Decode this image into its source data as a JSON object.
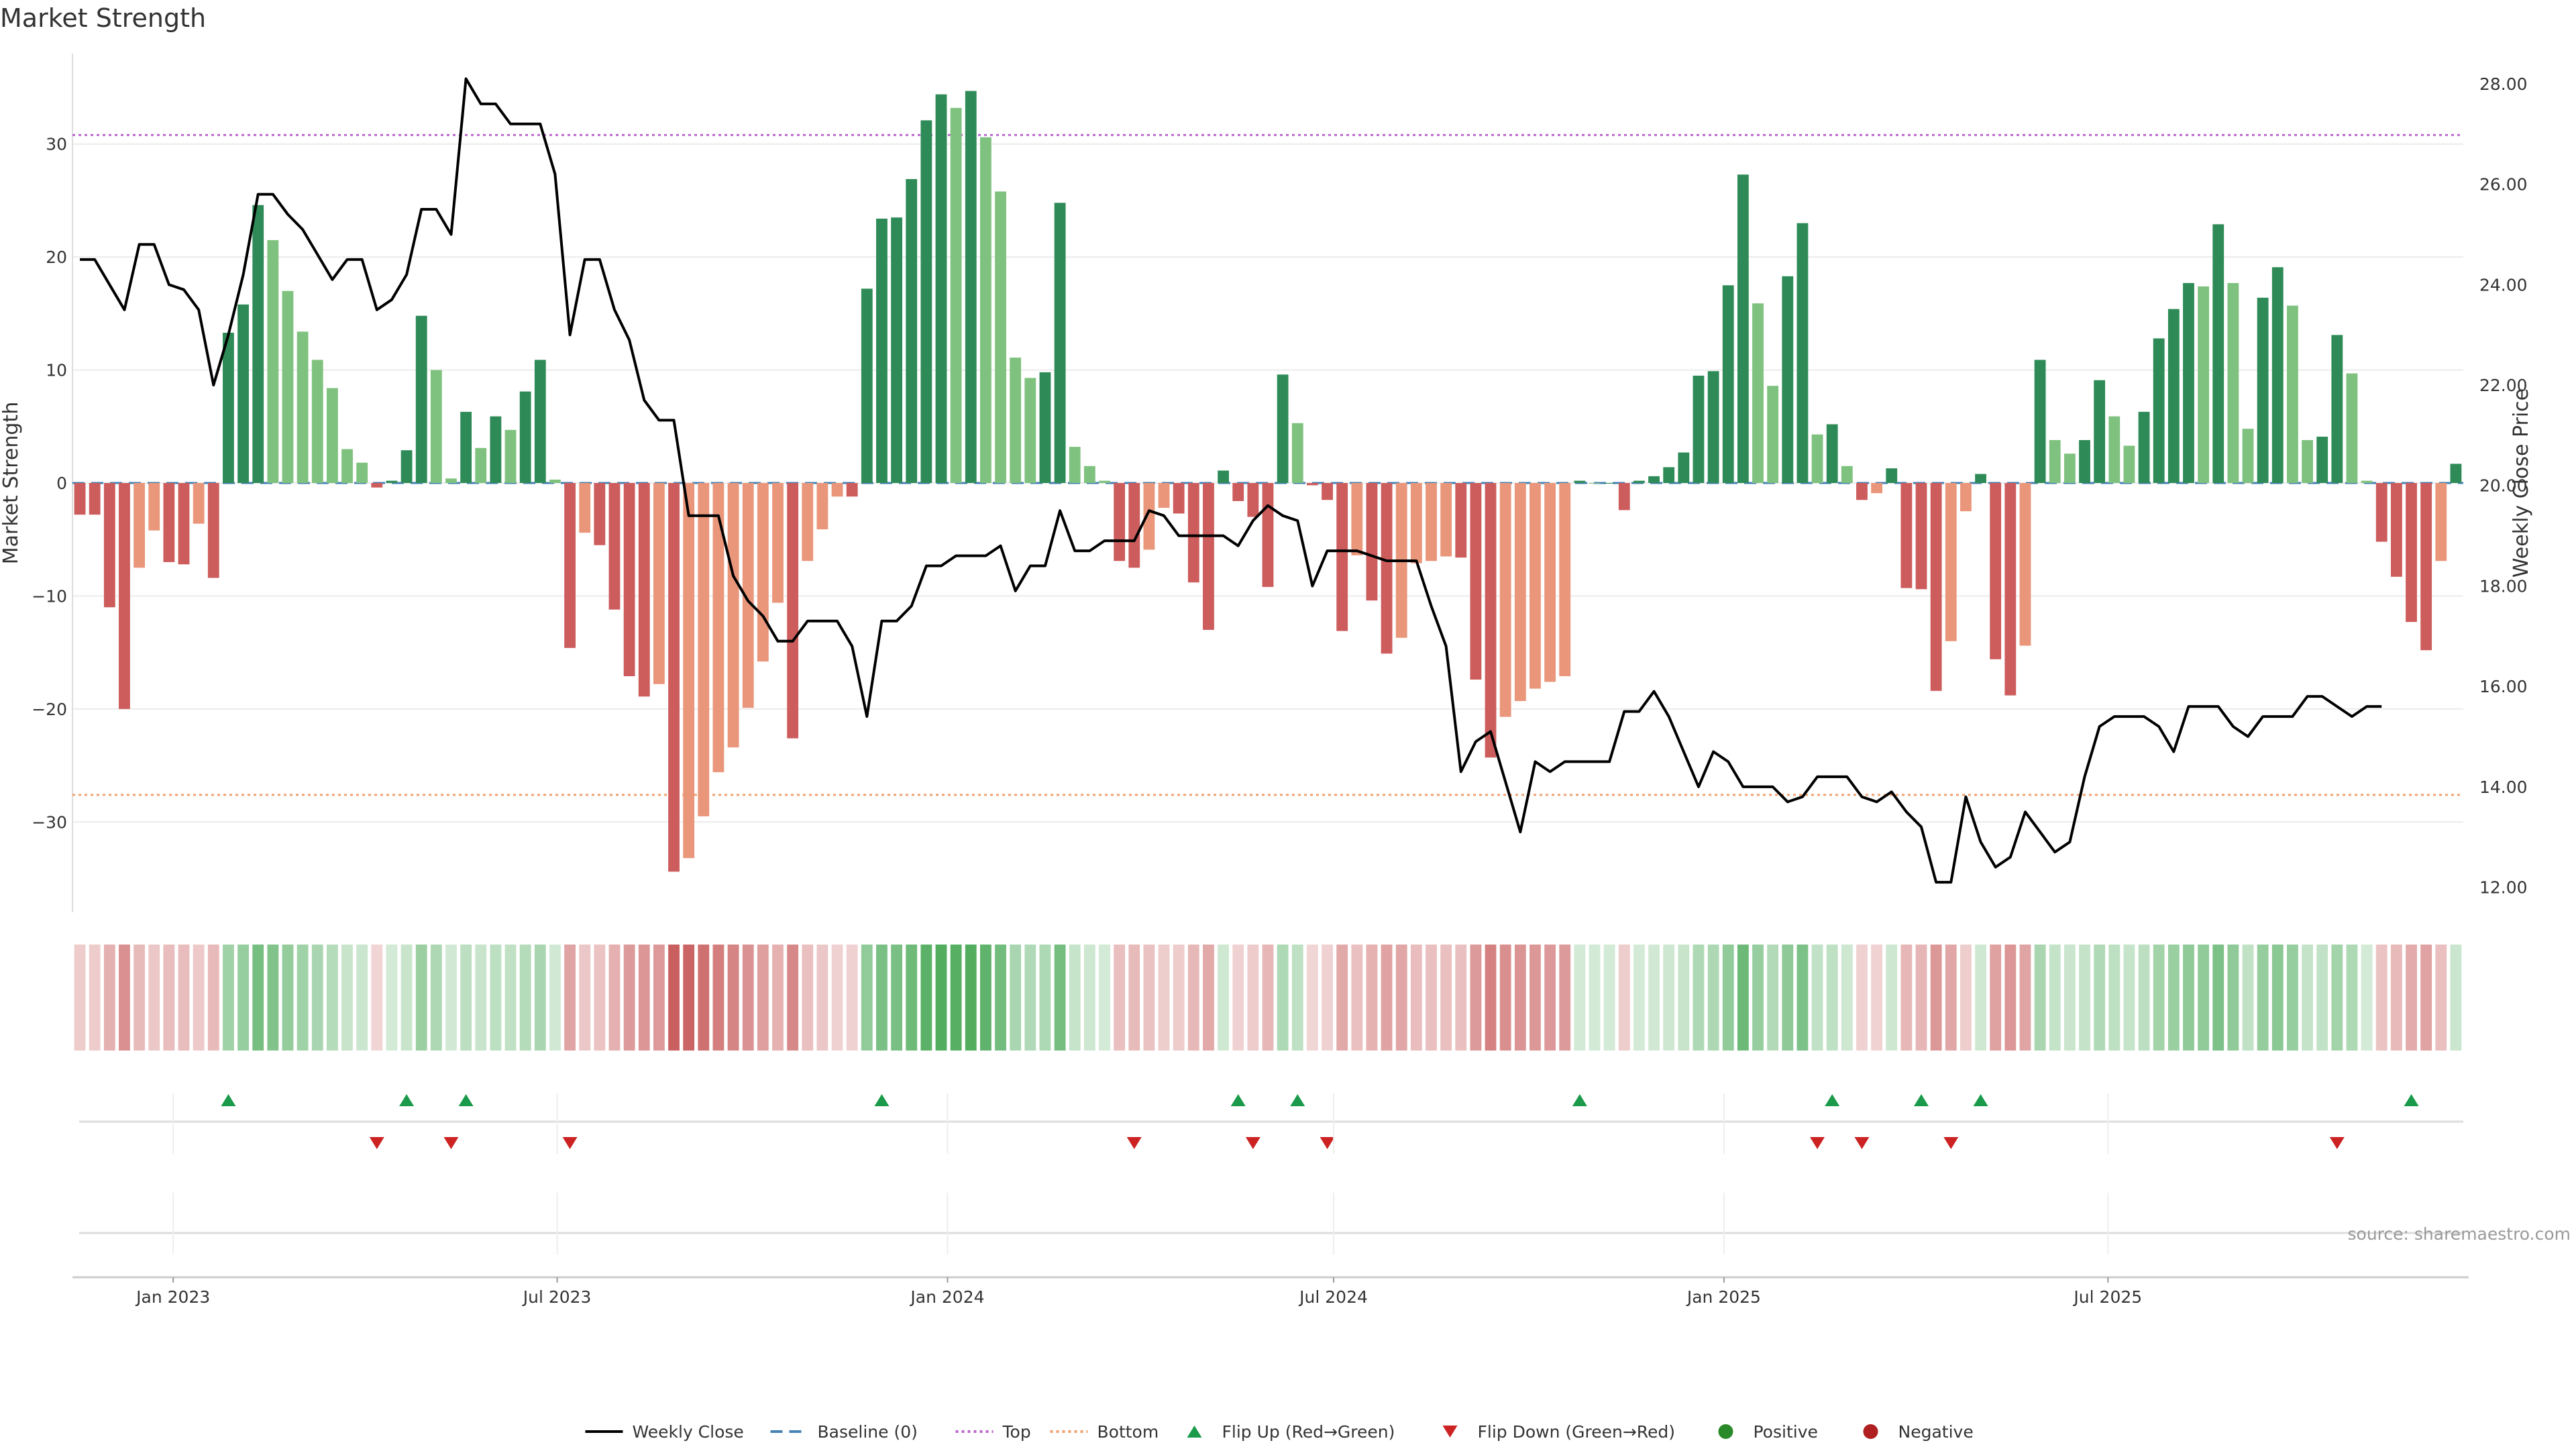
{
  "chart_data": {
    "type": "bar",
    "title": "Market Strength",
    "ylabel": "Market Strength",
    "y2label": "Weekly Close Price",
    "ylim": [
      -38,
      38
    ],
    "y2lim": [
      11.5,
      28.6
    ],
    "yticks": [
      -30,
      -20,
      -10,
      0,
      10,
      20,
      30
    ],
    "y2ticks": [
      "12.00",
      "14.00",
      "16.00",
      "18.00",
      "20.00",
      "22.00",
      "24.00",
      "26.00",
      "28.00"
    ],
    "top_line": 30.8,
    "bottom_line": -27.6,
    "x_start": "2022-11-18",
    "x_ticks": [
      {
        "label": "Jan 2023",
        "date": "2023-01-01"
      },
      {
        "label": "Jul 2023",
        "date": "2023-07-01"
      },
      {
        "label": "Jan 2024",
        "date": "2024-01-01"
      },
      {
        "label": "Jul 2024",
        "date": "2024-07-01"
      },
      {
        "label": "Jan 2025",
        "date": "2025-01-01"
      },
      {
        "label": "Jul 2025",
        "date": "2025-07-01"
      }
    ],
    "strength": [
      -2.8,
      -2.8,
      -11,
      -20,
      -7.5,
      -4.2,
      -7,
      -7.2,
      -3.6,
      -8.4,
      13.3,
      15.8,
      24.6,
      21.5,
      17,
      13.4,
      10.9,
      8.4,
      3,
      1.8,
      -0.4,
      0.2,
      2.9,
      14.8,
      10,
      0.4,
      6.3,
      3.1,
      5.9,
      4.7,
      8.1,
      10.9,
      0.3,
      -14.6,
      -4.4,
      -5.5,
      -11.2,
      -17.1,
      -18.9,
      -17.8,
      -34.4,
      -33.2,
      -29.5,
      -25.6,
      -23.4,
      -19.9,
      -15.8,
      -10.6,
      -22.6,
      -6.9,
      -4.1,
      -1.2,
      -1.2,
      17.2,
      23.4,
      23.5,
      26.9,
      32.1,
      34.4,
      33.2,
      34.7,
      30.6,
      25.8,
      11.1,
      9.3,
      9.8,
      24.8,
      3.2,
      1.5,
      0.2,
      -6.9,
      -7.5,
      -5.9,
      -2.2,
      -2.7,
      -8.8,
      -13,
      1.1,
      -1.6,
      -3,
      -9.2,
      9.6,
      5.3,
      -0.2,
      -1.5,
      -13.1,
      -6.4,
      -10.4,
      -15.1,
      -13.7,
      -7.1,
      -6.9,
      -6.5,
      -6.6,
      -17.4,
      -24.3,
      -20.7,
      -19.3,
      -18.2,
      -17.6,
      -17.1,
      0.2,
      0,
      0,
      -2.4,
      0.2,
      0.6,
      1.4,
      2.7,
      9.5,
      9.9,
      17.5,
      27.3,
      15.9,
      8.6,
      18.3,
      23,
      4.3,
      5.2,
      1.5,
      -1.5,
      -0.9,
      1.3,
      -9.3,
      -9.4,
      -18.4,
      -14,
      -2.5,
      0.8,
      -15.6,
      -18.8,
      -14.4,
      10.9,
      3.8,
      2.6,
      3.8,
      9.1,
      5.9,
      3.3,
      6.3,
      12.8,
      15.4,
      17.7,
      17.4,
      22.9,
      17.7,
      4.8,
      16.4,
      19.1,
      15.7,
      3.8,
      4.1,
      13.1,
      9.7,
      0.2,
      -5.2,
      -8.3,
      -12.3,
      -14.8,
      -6.9,
      1.7
    ],
    "close": [
      24.5,
      24.5,
      24,
      23.5,
      24.8,
      24.8,
      24,
      23.9,
      23.5,
      22,
      23,
      24.2,
      25.8,
      25.8,
      25.4,
      25.1,
      24.6,
      24.1,
      24.5,
      24.5,
      23.5,
      23.7,
      24.2,
      25.5,
      25.5,
      25,
      28.1,
      27.6,
      27.6,
      27.2,
      27.2,
      27.2,
      26.2,
      23,
      24.5,
      24.5,
      23.5,
      22.9,
      21.7,
      21.3,
      21.3,
      19.4,
      19.4,
      19.4,
      18.2,
      17.7,
      17.4,
      16.9,
      16.9,
      17.3,
      17.3,
      17.3,
      16.8,
      15.4,
      17.3,
      17.3,
      17.6,
      18.4,
      18.4,
      18.6,
      18.6,
      18.6,
      18.8,
      17.9,
      18.4,
      18.4,
      19.5,
      18.7,
      18.7,
      18.9,
      18.9,
      18.9,
      19.5,
      19.4,
      19,
      19,
      19,
      19,
      18.8,
      19.3,
      19.6,
      19.4,
      19.3,
      18,
      18.7,
      18.7,
      18.7,
      18.6,
      18.5,
      18.5,
      18.5,
      17.6,
      16.8,
      14.3,
      14.9,
      15.1,
      14.1,
      13.1,
      14.5,
      14.3,
      14.5,
      14.5,
      14.5,
      14.5,
      15.5,
      15.5,
      15.9,
      15.4,
      14.7,
      14,
      14.7,
      14.5,
      14,
      14,
      14,
      13.7,
      13.8,
      14.2,
      14.2,
      14.2,
      13.8,
      13.7,
      13.9,
      13.5,
      13.2,
      12.1,
      12.1,
      13.8,
      12.9,
      12.4,
      12.6,
      13.5,
      13.1,
      12.7,
      12.9,
      14.2,
      15.2,
      15.4,
      15.4,
      15.4,
      15.2,
      14.7,
      15.6,
      15.6,
      15.6,
      15.2,
      15,
      15.4,
      15.4,
      15.4,
      15.8,
      15.8,
      15.6,
      15.4,
      15.6,
      15.6
    ],
    "flip_up_weeks": [
      10,
      22,
      26,
      54,
      78,
      82,
      101,
      118,
      124,
      128,
      157
    ],
    "flip_down_weeks": [
      20,
      25,
      33,
      71,
      79,
      84,
      117,
      120,
      126,
      152
    ],
    "legend": [
      {
        "label": "Weekly Close",
        "kind": "line"
      },
      {
        "label": "Baseline (0)",
        "kind": "dash"
      },
      {
        "label": "Top",
        "kind": "dot-purple"
      },
      {
        "label": "Bottom",
        "kind": "dot-orange"
      },
      {
        "label": "Flip Up (Red→Green)",
        "kind": "tri-up"
      },
      {
        "label": "Flip Down (Green→Red)",
        "kind": "tri-down"
      },
      {
        "label": "Positive",
        "kind": "circle-green"
      },
      {
        "label": "Negative",
        "kind": "circle-red"
      }
    ],
    "source": "source: sharemaestro.com",
    "colors": {
      "pos_strong": "#2e8b57",
      "pos_weak": "#7fc27f",
      "neg_strong": "#cd5c5c",
      "neg_weak": "#e9967a",
      "close": "#000000",
      "top": "#bb66cc",
      "bottom": "#f0a070",
      "baseline": "#4682b4",
      "flip_up": "#1a9a4a",
      "flip_down": "#cc2222"
    }
  }
}
